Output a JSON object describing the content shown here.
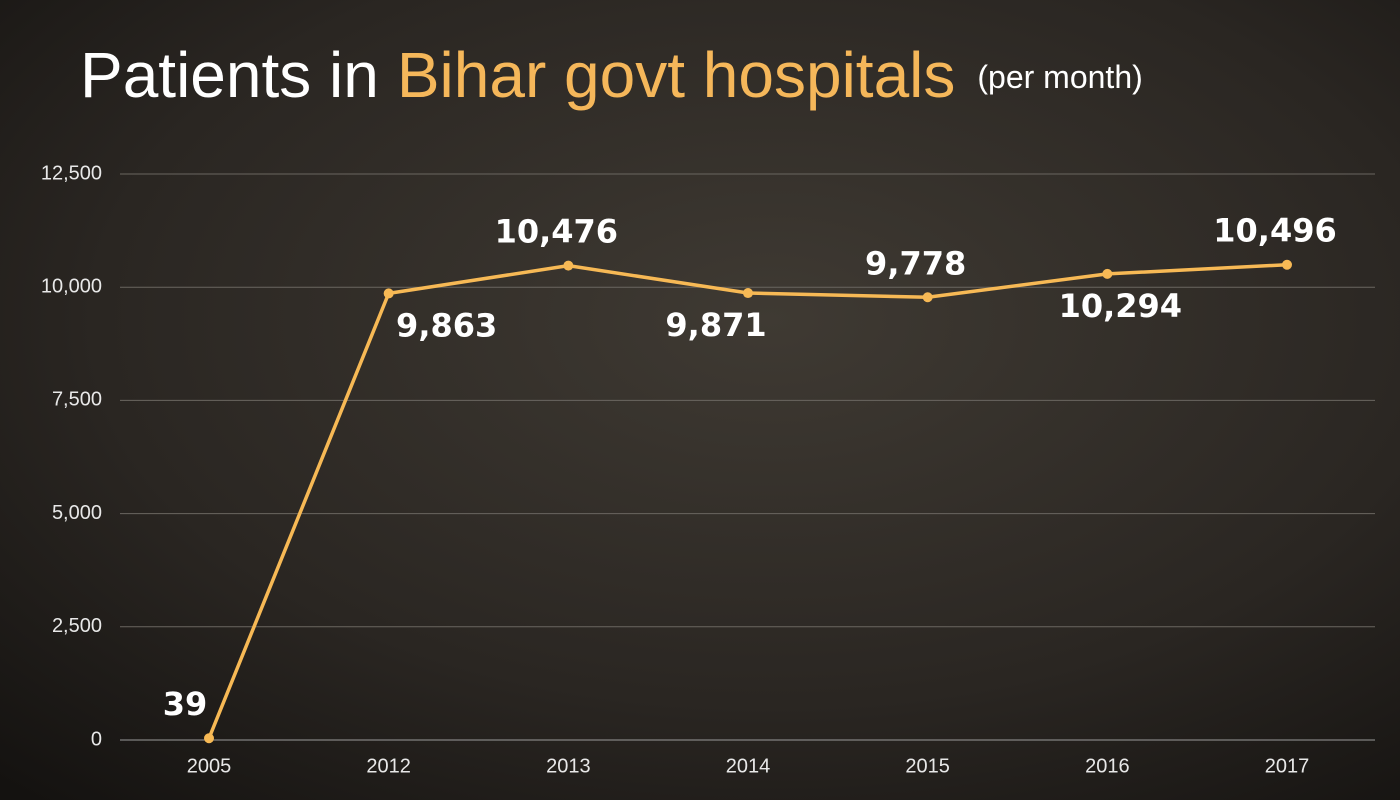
{
  "chart_data": {
    "type": "line",
    "title_parts": [
      "Patients in",
      "Bihar govt hospitals"
    ],
    "subtitle": "(per month)",
    "title_color": "#ffffff",
    "highlight_color": "#f5b75a",
    "categories": [
      "2005",
      "2012",
      "2013",
      "2014",
      "2015",
      "2016",
      "2017"
    ],
    "values": [
      39,
      9863,
      10476,
      9871,
      9778,
      10294,
      10496
    ],
    "value_labels": [
      "39",
      "9,863",
      "10,476",
      "9,871",
      "9,778",
      "10,294",
      "10,496"
    ],
    "color": "#f7b955",
    "ylim": [
      0,
      12500
    ],
    "yticks": [
      0,
      {
        "value": 2500,
        "label": "2,500"
      },
      {
        "value": 5000,
        "label": "5,000"
      },
      {
        "value": 7500,
        "label": "7,500"
      },
      {
        "value": 10000,
        "label": "10,000"
      },
      {
        "value": 12500,
        "label": "12,500"
      }
    ],
    "grid": true
  }
}
